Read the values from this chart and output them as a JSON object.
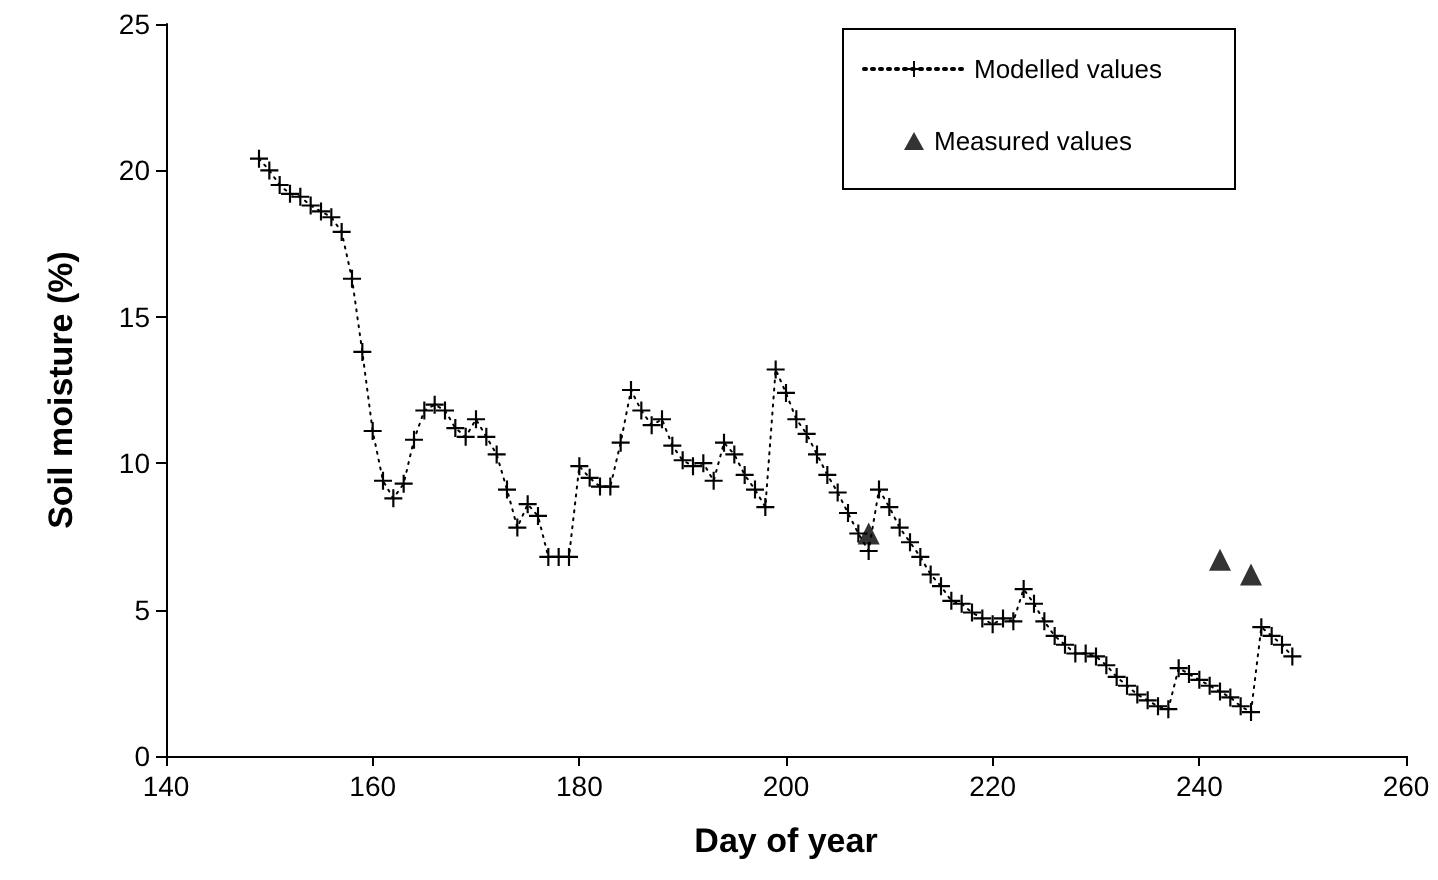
{
  "chart_data": {
    "type": "line",
    "xlabel": "Day of year",
    "ylabel": "Soil moisture (%)",
    "xlim": [
      140,
      260
    ],
    "xticks": [
      140,
      160,
      180,
      200,
      220,
      240,
      260
    ],
    "ylim": [
      0,
      25
    ],
    "yticks": [
      0,
      5,
      10,
      15,
      20,
      25
    ],
    "grid": false,
    "legend": "top right",
    "line_style": "dotted",
    "series": [
      {
        "name": "Modelled values",
        "marker": "cross",
        "color": "#000000",
        "x": [
          149,
          150,
          151,
          152,
          153,
          154,
          155,
          156,
          157,
          158,
          159,
          160,
          161,
          162,
          163,
          164,
          165,
          166,
          167,
          168,
          169,
          170,
          171,
          172,
          173,
          174,
          175,
          176,
          177,
          178,
          179,
          180,
          181,
          182,
          183,
          184,
          185,
          186,
          187,
          188,
          189,
          190,
          191,
          192,
          193,
          194,
          195,
          196,
          197,
          198,
          199,
          200,
          201,
          202,
          203,
          204,
          205,
          206,
          207,
          208,
          209,
          210,
          211,
          212,
          213,
          214,
          215,
          216,
          217,
          218,
          219,
          220,
          221,
          222,
          223,
          224,
          225,
          226,
          227,
          228,
          229,
          230,
          231,
          232,
          233,
          234,
          235,
          236,
          237,
          238,
          239,
          240,
          241,
          242,
          243,
          244,
          245,
          246,
          247,
          248,
          249
        ],
        "values": [
          20.4,
          20.0,
          19.5,
          19.2,
          19.1,
          18.8,
          18.6,
          18.4,
          17.9,
          16.3,
          13.8,
          11.1,
          9.4,
          8.8,
          9.3,
          10.8,
          11.8,
          12.0,
          11.8,
          11.2,
          10.9,
          11.5,
          10.9,
          10.3,
          9.1,
          7.8,
          8.6,
          8.2,
          6.8,
          6.8,
          6.8,
          9.9,
          9.5,
          9.2,
          9.2,
          10.7,
          12.5,
          11.8,
          11.3,
          11.5,
          10.6,
          10.1,
          9.9,
          10.0,
          9.4,
          10.7,
          10.3,
          9.6,
          9.1,
          8.5,
          13.2,
          12.4,
          11.5,
          11.0,
          10.3,
          9.6,
          9.0,
          8.3,
          7.6,
          7.0,
          9.1,
          8.5,
          7.8,
          7.3,
          6.8,
          6.2,
          5.8,
          5.3,
          5.2,
          4.9,
          4.7,
          4.5,
          4.7,
          4.6,
          5.7,
          5.2,
          4.6,
          4.1,
          3.8,
          3.5,
          3.5,
          3.4,
          3.1,
          2.7,
          2.4,
          2.1,
          1.9,
          1.7,
          1.6,
          3.0,
          2.8,
          2.6,
          2.4,
          2.2,
          2.0,
          1.7,
          1.5,
          4.4,
          4.1,
          3.8,
          3.4
        ]
      },
      {
        "name": "Measured values",
        "type": "scatter",
        "marker": "triangle",
        "color": "#000000",
        "x": [
          208,
          242,
          245
        ],
        "values": [
          7.6,
          6.7,
          6.2
        ]
      }
    ]
  }
}
